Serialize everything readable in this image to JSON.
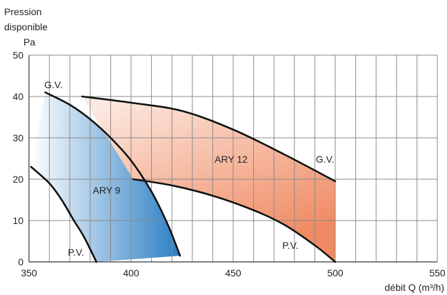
{
  "chart_data": {
    "type": "line",
    "ylabel_line1": "Pression",
    "ylabel_line2": "disponible",
    "yunit": "Pa",
    "xlabel": "débit Q (m³/h)",
    "xlim": [
      350,
      550
    ],
    "ylim": [
      0,
      50
    ],
    "xticks": [
      350,
      400,
      450,
      500,
      550
    ],
    "yticks": [
      0,
      10,
      20,
      30,
      40,
      50
    ],
    "grid": true,
    "colors": {
      "ary9_fill_light": "#ffffff",
      "ary9_fill_dark": "#2b7ec4",
      "ary12_fill_light": "#fdf0ea",
      "ary12_fill_dark": "#f08a62",
      "curve": "#111111",
      "grid": "#8a8a8a"
    },
    "series": [
      {
        "name": "ARY 9",
        "curves": [
          {
            "label": "G.V.",
            "points": [
              [
                358,
                41
              ],
              [
                370,
                38
              ],
              [
                380,
                34.5
              ],
              [
                390,
                30
              ],
              [
                400,
                24.5
              ],
              [
                410,
                17
              ],
              [
                418,
                9
              ],
              [
                424,
                1.5
              ]
            ]
          },
          {
            "label": "P.V.",
            "points": [
              [
                351,
                23
              ],
              [
                360,
                19
              ],
              [
                366,
                15
              ],
              [
                372,
                10
              ],
              [
                377,
                6
              ],
              [
                383,
                0
              ]
            ]
          }
        ]
      },
      {
        "name": "ARY 12",
        "curves": [
          {
            "label": "G.V.",
            "points": [
              [
                376,
                40
              ],
              [
                400,
                38.5
              ],
              [
                425,
                36.5
              ],
              [
                450,
                32
              ],
              [
                475,
                26
              ],
              [
                500,
                19.5
              ]
            ]
          },
          {
            "label": "P.V.",
            "points": [
              [
                401,
                20
              ],
              [
                420,
                18.5
              ],
              [
                440,
                16
              ],
              [
                460,
                12.5
              ],
              [
                475,
                9
              ],
              [
                490,
                4
              ],
              [
                500,
                0
              ]
            ]
          }
        ]
      }
    ],
    "annotations": [
      {
        "text": "G.V.",
        "x": 362,
        "y": 42
      },
      {
        "text": "ARY 9",
        "x": 388,
        "y": 16.5
      },
      {
        "text": "P.V.",
        "x": 373,
        "y": 1.5
      },
      {
        "text": "ARY 12",
        "x": 449,
        "y": 24
      },
      {
        "text": "G.V.",
        "x": 495,
        "y": 24
      },
      {
        "text": "P.V.",
        "x": 478,
        "y": 3.2
      }
    ]
  }
}
